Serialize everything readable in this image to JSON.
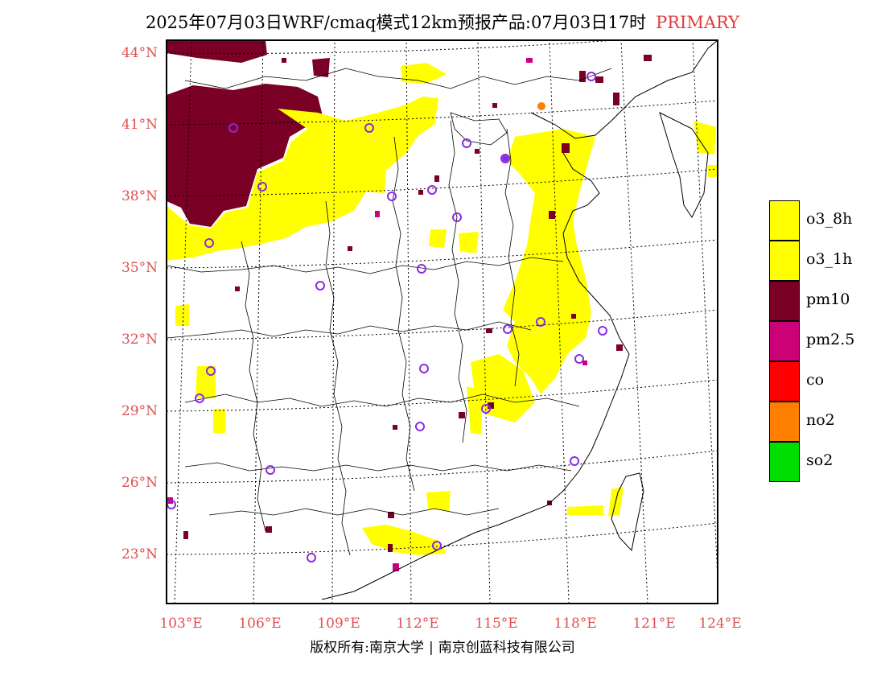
{
  "title": {
    "main": "2025年07月03日WRF/cmaq模式12km预报产品:07月03日17时",
    "mode": "PRIMARY"
  },
  "lat_labels": [
    "44°N",
    "41°N",
    "38°N",
    "35°N",
    "32°N",
    "29°N",
    "26°N",
    "23°N"
  ],
  "lon_labels": [
    "103°E",
    "106°E",
    "109°E",
    "112°E",
    "115°E",
    "118°E",
    "121°E",
    "124°E"
  ],
  "legend": [
    {
      "label": "o3_8h",
      "color": "#ffff00"
    },
    {
      "label": "o3_1h",
      "color": "#ffff00"
    },
    {
      "label": "pm10",
      "color": "#7a0026"
    },
    {
      "label": "pm2.5",
      "color": "#cc0077"
    },
    {
      "label": "co",
      "color": "#ff0000"
    },
    {
      "label": "no2",
      "color": "#ff7f00"
    },
    {
      "label": "so2",
      "color": "#00dd00"
    }
  ],
  "copyright": {
    "left": "版权所有:南京大学",
    "right": "南京创蓝科技有限公司"
  },
  "colors": {
    "o3": "#ffff00",
    "pm10": "#7a0026",
    "pm25": "#cc0077",
    "station": "#8a2be2",
    "no2": "#ff7f00"
  }
}
